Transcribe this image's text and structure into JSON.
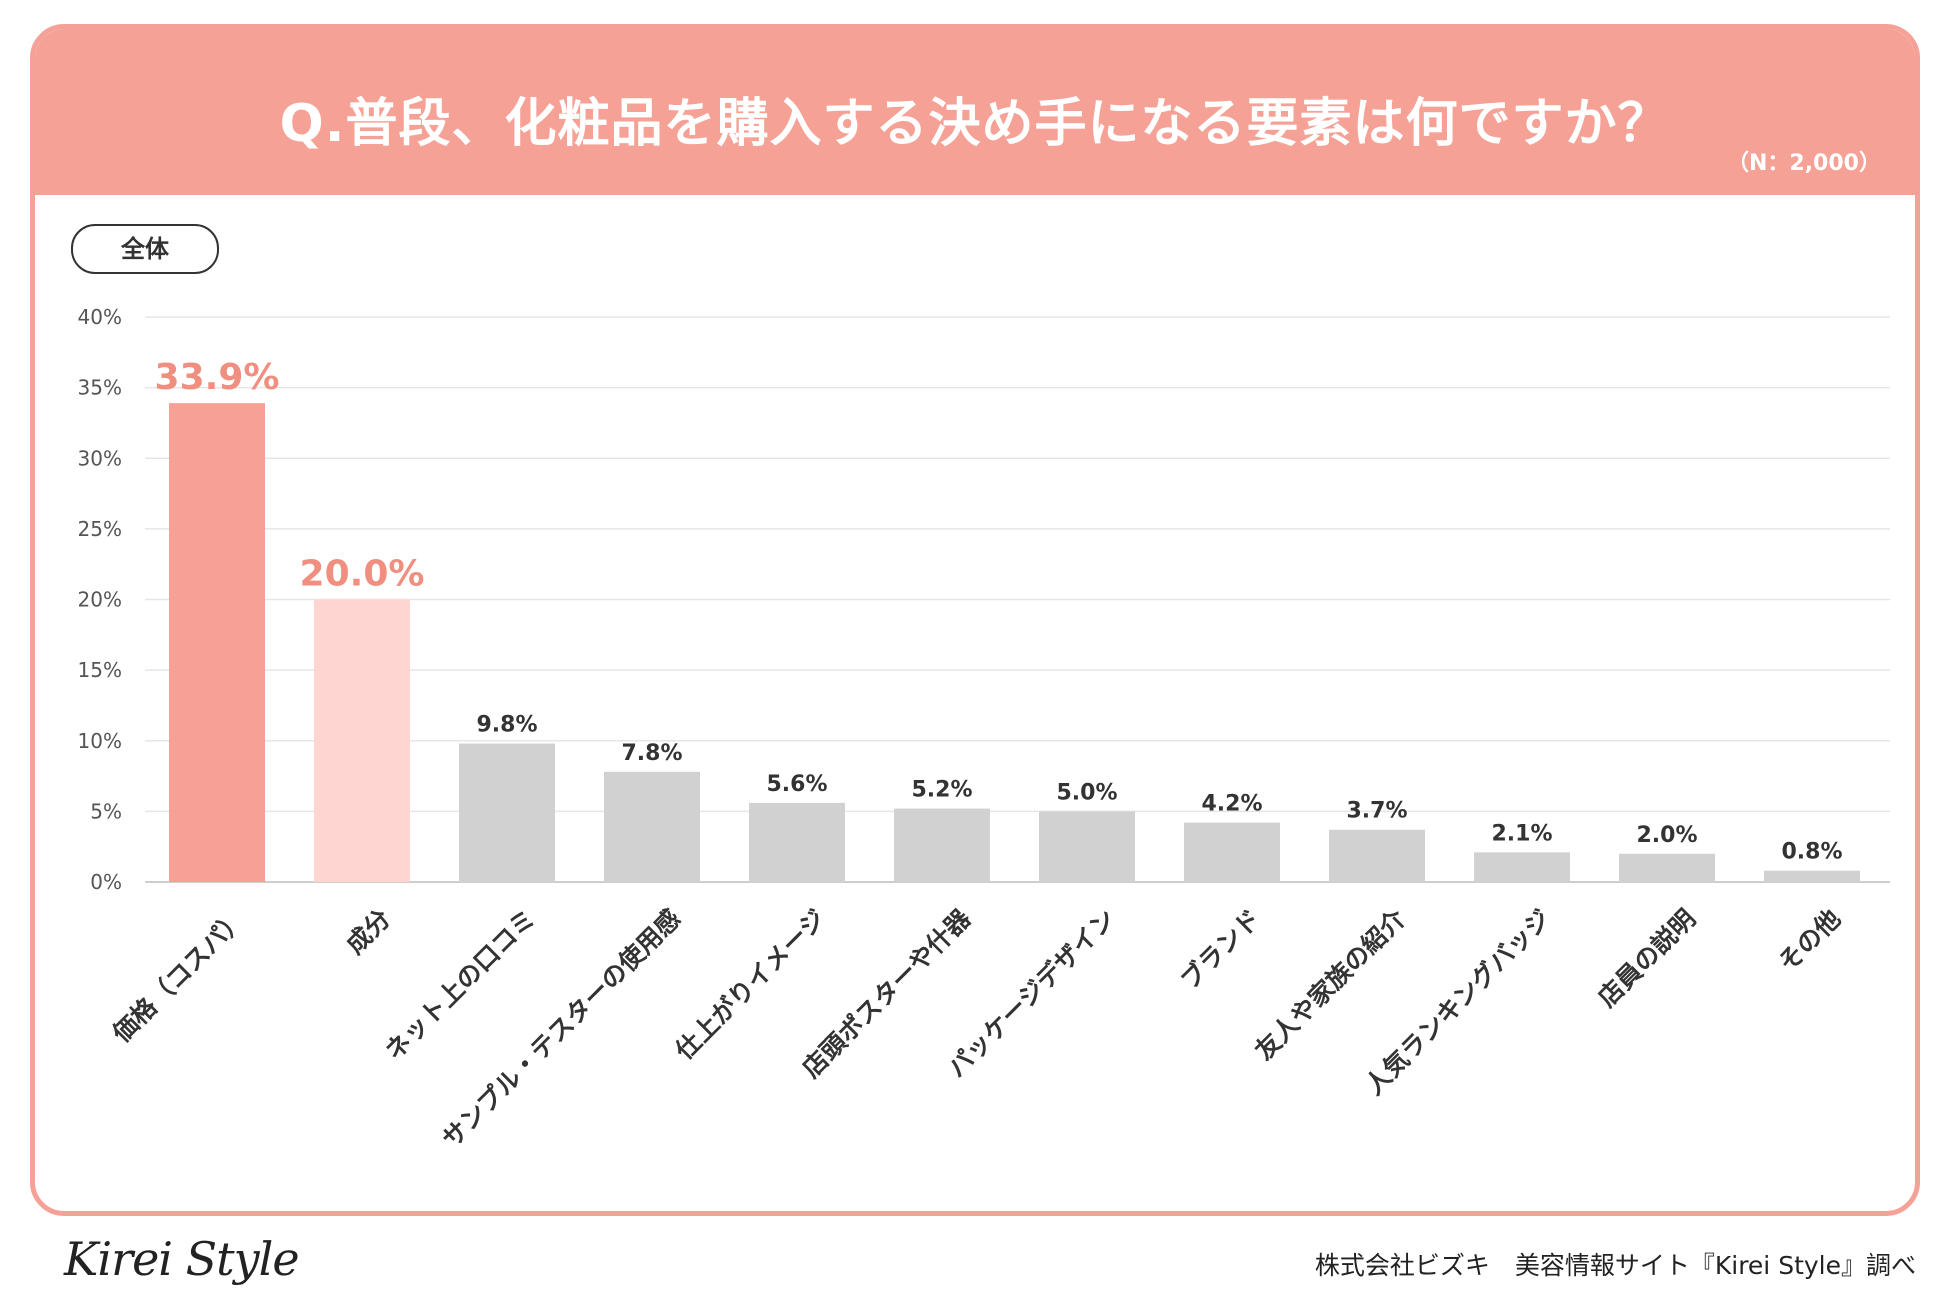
{
  "header": {
    "title": "Q.普段、化粧品を購入する決め手になる要素は何ですか？",
    "sample_size": "（N：2,000）"
  },
  "filter_pill": "全体",
  "footer": {
    "logo": "Kirei Style",
    "credit": "株式会社ビズキ　美容情報サイト『Kirei Style』調べ"
  },
  "colors": {
    "header_bg": "#f5a196",
    "top1": "#f7a095",
    "top2": "#fed5d0",
    "others": "#d1d1d1",
    "highlight_label": "#f08f80"
  },
  "chart_data": {
    "type": "bar",
    "title": "Q.普段、化粧品を購入する決め手になる要素は何ですか？",
    "xlabel": "",
    "ylabel": "",
    "ylim": [
      0,
      40
    ],
    "yticks": [
      0,
      5,
      10,
      15,
      20,
      25,
      30,
      35,
      40
    ],
    "ytick_labels": [
      "0%",
      "5%",
      "10%",
      "15%",
      "20%",
      "25%",
      "30%",
      "35%",
      "40%"
    ],
    "grid": true,
    "categories": [
      "価格（コスパ）",
      "成分",
      "ネット上の口コミ",
      "サンプル・テスターの使用感",
      "仕上がりイメージ",
      "店頭ポスターや什器",
      "パッケージデザイン",
      "ブランド",
      "友人や家族の紹介",
      "人気ランキングバッジ",
      "店員の説明",
      "その他"
    ],
    "values": [
      33.9,
      20.0,
      9.8,
      7.8,
      5.6,
      5.2,
      5.0,
      4.2,
      3.7,
      2.1,
      2.0,
      0.8
    ],
    "value_labels": [
      "33.9%",
      "20.0%",
      "9.8%",
      "7.8%",
      "5.6%",
      "5.2%",
      "5.0%",
      "4.2%",
      "3.7%",
      "2.1%",
      "2.0%",
      "0.8%"
    ]
  }
}
